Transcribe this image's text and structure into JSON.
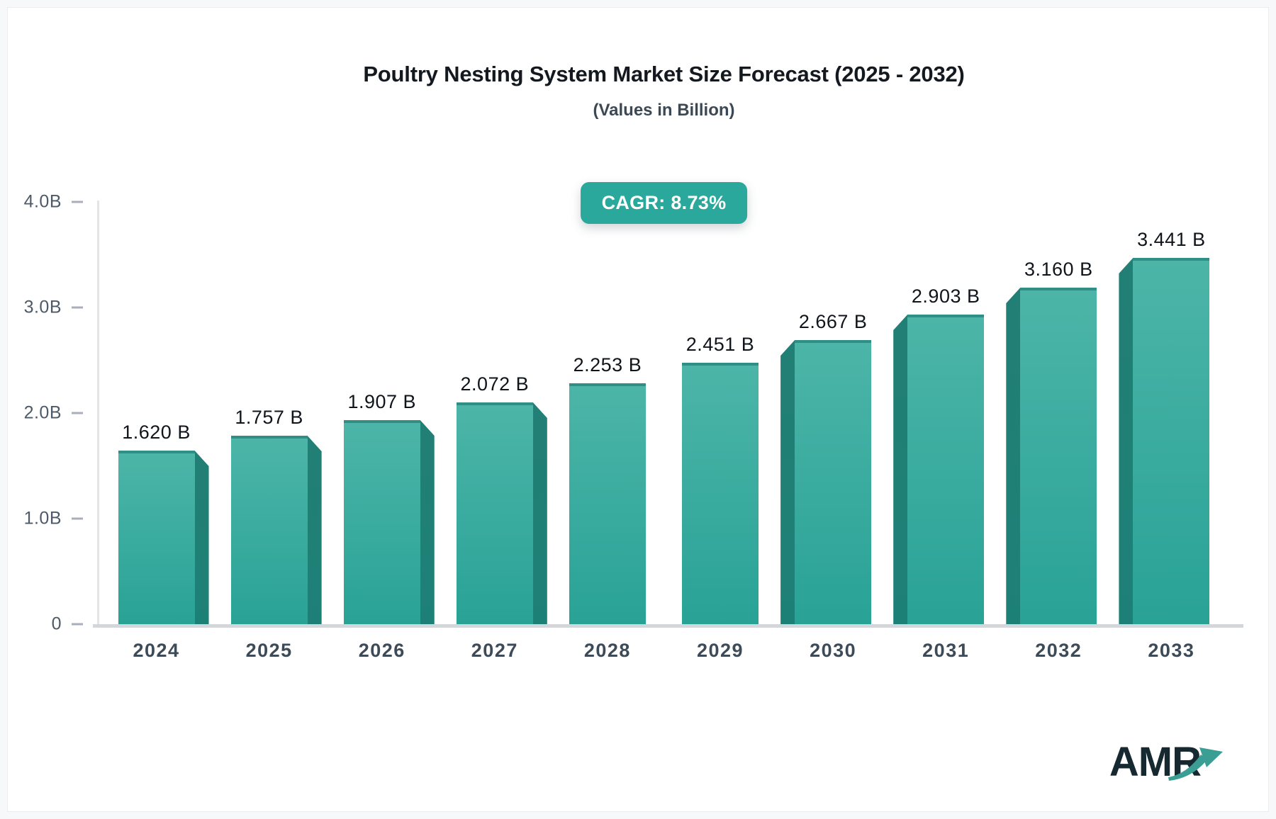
{
  "page": {
    "background": "#f7f8f9",
    "card_background": "#ffffff"
  },
  "header": {
    "title": "Poultry Nesting System Market Size Forecast (2025 - 2032)",
    "subtitle": "(Values in Billion)",
    "cagr_badge": "CAGR: 8.73%"
  },
  "chart_data": {
    "type": "bar",
    "title": "Poultry Nesting System Market Size Forecast (2025 - 2032)",
    "subtitle": "(Values in Billion)",
    "cagr": "8.73%",
    "categories": [
      "2024",
      "2025",
      "2026",
      "2027",
      "2028",
      "2029",
      "2030",
      "2031",
      "2032",
      "2033"
    ],
    "values": [
      1.62,
      1.757,
      1.907,
      2.072,
      2.253,
      2.451,
      2.667,
      2.903,
      3.16,
      3.441
    ],
    "value_labels": [
      "1.620 B",
      "1.757 B",
      "1.907 B",
      "2.072 B",
      "2.253 B",
      "2.451 B",
      "2.667 B",
      "2.903 B",
      "3.160 B",
      "3.441 B"
    ],
    "unit": "Billion",
    "ylim": [
      0,
      4
    ],
    "y_ticks": [
      {
        "label": "4.0B",
        "value": 4.0
      },
      {
        "label": "3.0B",
        "value": 3.0
      },
      {
        "label": "2.0B",
        "value": 2.0
      },
      {
        "label": "1.0B",
        "value": 1.0
      },
      {
        "label": "0",
        "value": 0.0
      }
    ],
    "grid": false,
    "legend": "none",
    "bar_style_3d_side": [
      "right",
      "right",
      "right",
      "right",
      "none",
      "none",
      "left",
      "left",
      "left",
      "left"
    ],
    "colors": {
      "bar_face_top": "#4cb5a8",
      "bar_face_bottom": "#29a296",
      "bar_top_edge": "#2f8f87",
      "bar_side": "#1e7f75",
      "badge_background": "#2aa89c",
      "axis_line": "#e2e4e8",
      "baseline": "#d3d6db",
      "tick": "#a9afb8",
      "value_label_text": "#10151c",
      "year_label_text": "#3d4a57",
      "y_label_text": "#4d5a68"
    }
  },
  "branding": {
    "logo_text": "AMR",
    "logo_color": "#162830",
    "arrow_color": "#3a9e94"
  }
}
